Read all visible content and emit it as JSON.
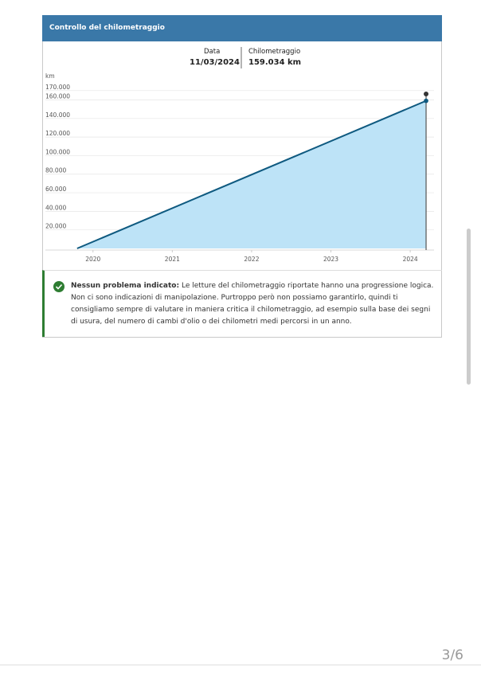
{
  "header": {
    "title": "Controllo del chilometraggio"
  },
  "tooltip": {
    "date_label": "Data",
    "date": "11/03/2024",
    "km_label": "Chilometraggio",
    "km": "159.034 km"
  },
  "chart_data": {
    "type": "area",
    "y_label": "km",
    "x": [
      2019.8,
      2024.2
    ],
    "values": [
      0,
      159034
    ],
    "color": "#0f5a80",
    "fill": "#bde3f7",
    "xlim": [
      2019.4,
      2024.3
    ],
    "xticks": [
      2020,
      2021,
      2022,
      2023,
      2024
    ],
    "ylim": [
      0,
      175000
    ],
    "yticks": [
      {
        "value": 20000,
        "label": "20.000"
      },
      {
        "value": 40000,
        "label": "40.000"
      },
      {
        "value": 60000,
        "label": "60.000"
      },
      {
        "value": 80000,
        "label": "80.000"
      },
      {
        "value": 100000,
        "label": "100.000"
      },
      {
        "value": 120000,
        "label": "120.000"
      },
      {
        "value": 140000,
        "label": "140.000"
      },
      {
        "value": 160000,
        "label": "160.000"
      },
      {
        "value": 170000,
        "label": "170.000"
      }
    ],
    "grid": true
  },
  "notice": {
    "title": "Nessun problema indicato:",
    "text": "Le letture del chilometraggio riportate hanno una progressione logica. Non ci sono indicazioni di manipolazione. Purtroppo però non possiamo garantirlo, quindi ti consigliamo sempre di valutare in maniera critica il chilometraggio, ad esempio sulla base dei segni di usura, del numero di cambi d'olio o dei chilometri medi percorsi in un anno."
  },
  "page_indicator": "3/6"
}
